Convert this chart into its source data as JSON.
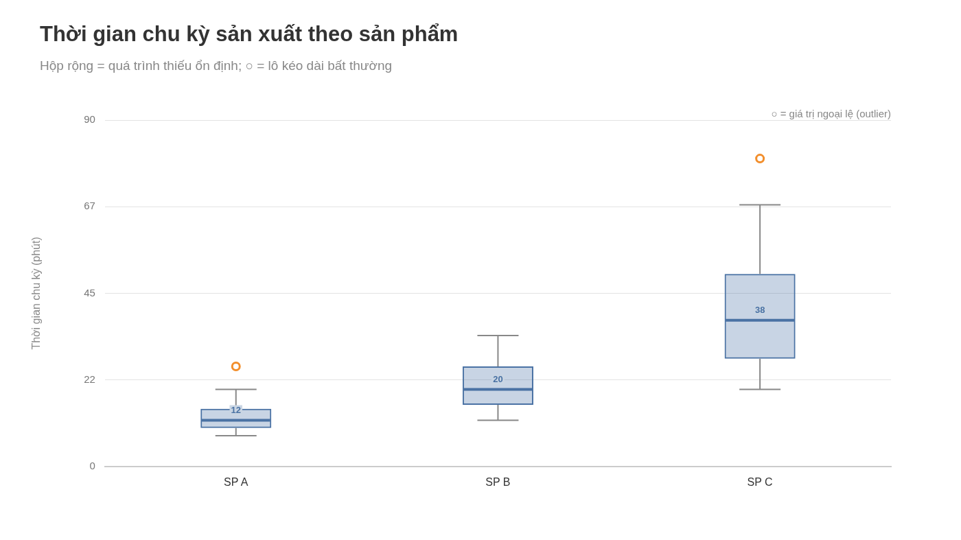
{
  "chart_data": {
    "type": "box",
    "title": "Thời gian chu kỳ sản xuất theo sản phẩm",
    "subtitle": "Hộp rộng = quá trình thiếu ổn định; ○ = lô kéo dài bất thường",
    "ylabel": "Thời gian chu kỳ (phút)",
    "annotations": [
      "○ = giá trị ngoại lệ (outlier)",
      {
        "text": "12",
        "x": "SP A",
        "y": 12
      },
      {
        "text": "20",
        "x": "SP B",
        "y": 20
      },
      {
        "text": "38",
        "x": "SP C",
        "y": 38
      }
    ],
    "categories": [
      "SP A",
      "SP B",
      "SP C"
    ],
    "series": [
      {
        "color": "#4a72a4",
        "boxes": [
          {
            "low": 8,
            "q1": 10,
            "median": 12,
            "q3": 15,
            "high": 20
          },
          {
            "low": 12,
            "q1": 16,
            "median": 20,
            "q3": 26,
            "high": 34
          },
          {
            "low": 20,
            "q1": 28,
            "median": 38,
            "q3": 50,
            "high": 68
          }
        ]
      },
      {
        "type": "scatter",
        "color": "#f28e2b",
        "x": [
          "SP A",
          "SP C"
        ],
        "values": [
          26,
          80
        ]
      }
    ],
    "ylim": [
      0,
      90
    ],
    "yticks": [
      0,
      {
        "value": 22.5,
        "label": "22"
      },
      45,
      {
        "value": 67.5,
        "label": "67"
      },
      90
    ],
    "grid": "y",
    "legend": false,
    "marker": "circle"
  }
}
